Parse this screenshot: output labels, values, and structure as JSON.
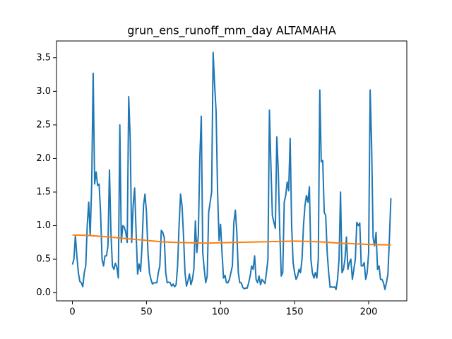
{
  "chart_data": {
    "type": "line",
    "title": "grun_ens_runoff_mm_day ALTAMAHA",
    "series": [
      {
        "color": "#1f77b4",
        "x": [
          0,
          1,
          2,
          3,
          4,
          5,
          6,
          7,
          8,
          9,
          10,
          11,
          12,
          13,
          14,
          15,
          16,
          17,
          18,
          19,
          20,
          21,
          22,
          23,
          24,
          25,
          26,
          27,
          28,
          29,
          30,
          31,
          32,
          33,
          34,
          35,
          36,
          37,
          38,
          39,
          40,
          41,
          42,
          43,
          44,
          45,
          46,
          47,
          48,
          49,
          50,
          51,
          52,
          53,
          54,
          55,
          56,
          57,
          58,
          59,
          60,
          61,
          62,
          63,
          64,
          65,
          66,
          67,
          68,
          69,
          70,
          71,
          72,
          73,
          74,
          75,
          76,
          77,
          78,
          79,
          80,
          81,
          82,
          83,
          84,
          85,
          86,
          87,
          88,
          89,
          90,
          91,
          92,
          93,
          94,
          95,
          96,
          97,
          98,
          99,
          100,
          101,
          102,
          103,
          104,
          105,
          106,
          107,
          108,
          109,
          110,
          111,
          112,
          113,
          114,
          115,
          116,
          117,
          118,
          119,
          120,
          121,
          122,
          123,
          124,
          125,
          126,
          127,
          128,
          129,
          130,
          131,
          132,
          133,
          134,
          135,
          136,
          137,
          138,
          139,
          140,
          141,
          142,
          143,
          144,
          145,
          146,
          147,
          148,
          149,
          150,
          151,
          152,
          153,
          154,
          155,
          156,
          157,
          158,
          159,
          160,
          161,
          162,
          163,
          164,
          165,
          166,
          167,
          168,
          169,
          170,
          171,
          172,
          173,
          174,
          175,
          176,
          177,
          178,
          179,
          180,
          181,
          182,
          183,
          184,
          185,
          186,
          187,
          188,
          189,
          190,
          191,
          192,
          193,
          194,
          195,
          196,
          197,
          198,
          199,
          200,
          201,
          202,
          203,
          204,
          205,
          206,
          207,
          208,
          209,
          210,
          211,
          212,
          213,
          214,
          215
        ],
        "values": [
          0.42,
          0.5,
          0.85,
          0.55,
          0.3,
          0.17,
          0.15,
          0.09,
          0.3,
          0.4,
          1.0,
          1.35,
          0.85,
          1.6,
          3.27,
          1.62,
          1.8,
          1.6,
          1.62,
          1.2,
          0.5,
          0.4,
          0.55,
          0.55,
          0.7,
          1.83,
          0.9,
          0.4,
          0.35,
          0.44,
          0.38,
          0.22,
          2.5,
          0.75,
          1.0,
          0.98,
          0.9,
          0.75,
          2.92,
          2.3,
          0.75,
          1.3,
          1.56,
          0.9,
          0.28,
          0.43,
          0.32,
          0.7,
          1.3,
          1.47,
          1.2,
          0.6,
          0.3,
          0.2,
          0.13,
          0.15,
          0.15,
          0.15,
          0.3,
          0.4,
          0.93,
          0.9,
          0.82,
          0.3,
          0.15,
          0.16,
          0.15,
          0.1,
          0.13,
          0.09,
          0.12,
          0.4,
          1.0,
          1.47,
          1.3,
          0.85,
          0.3,
          0.1,
          0.18,
          0.28,
          0.12,
          0.2,
          0.35,
          1.07,
          0.6,
          0.85,
          2.0,
          2.63,
          0.6,
          0.35,
          0.15,
          0.25,
          1.2,
          1.35,
          1.5,
          3.58,
          3.1,
          2.7,
          1.5,
          0.78,
          1.02,
          0.6,
          0.22,
          0.26,
          0.15,
          0.15,
          0.2,
          0.3,
          0.4,
          1.05,
          1.23,
          0.9,
          0.3,
          0.15,
          0.15,
          0.08,
          0.06,
          0.07,
          0.07,
          0.15,
          0.25,
          0.4,
          0.35,
          0.55,
          0.2,
          0.15,
          0.25,
          0.12,
          0.2,
          0.17,
          0.14,
          0.3,
          0.5,
          2.72,
          1.9,
          1.15,
          1.05,
          0.96,
          2.32,
          1.8,
          0.9,
          0.25,
          0.3,
          1.35,
          1.45,
          1.65,
          1.52,
          2.3,
          1.0,
          0.45,
          0.3,
          0.2,
          0.25,
          0.35,
          0.3,
          0.5,
          1.0,
          1.3,
          1.45,
          1.35,
          1.58,
          0.5,
          0.3,
          0.22,
          0.3,
          0.22,
          0.5,
          3.02,
          1.95,
          1.97,
          1.2,
          1.15,
          0.6,
          0.3,
          0.08,
          0.09,
          0.08,
          0.09,
          0.05,
          0.2,
          0.5,
          1.5,
          0.3,
          0.35,
          0.5,
          0.83,
          0.35,
          0.45,
          0.5,
          0.2,
          0.35,
          0.5,
          1.05,
          1.0,
          1.04,
          0.4,
          0.4,
          0.45,
          0.2,
          0.3,
          0.6,
          3.02,
          2.2,
          0.82,
          0.7,
          0.9,
          0.35,
          0.4,
          0.2,
          0.2,
          0.15,
          0.05,
          0.15,
          0.28,
          0.8,
          1.41
        ]
      },
      {
        "color": "#ff7f0e",
        "x": [
          0,
          10,
          20,
          30,
          40,
          50,
          60,
          70,
          80,
          90,
          100,
          110,
          120,
          130,
          140,
          150,
          160,
          170,
          180,
          190,
          200,
          210,
          215
        ],
        "values": [
          0.86,
          0.855,
          0.84,
          0.82,
          0.8,
          0.78,
          0.76,
          0.75,
          0.745,
          0.74,
          0.745,
          0.75,
          0.755,
          0.76,
          0.765,
          0.77,
          0.765,
          0.755,
          0.74,
          0.73,
          0.72,
          0.715,
          0.715
        ]
      }
    ],
    "xlim": [
      -10.75,
      225.75
    ],
    "xticks": [
      0,
      50,
      100,
      150,
      200
    ],
    "ylim": [
      -0.12,
      3.75
    ],
    "yticks": [
      {
        "value": 0,
        "label": "0.0"
      },
      0.5,
      {
        "value": 1,
        "label": "1.0"
      },
      1.5,
      {
        "value": 2,
        "label": "2.0"
      },
      2.5,
      {
        "value": 3,
        "label": "3.0"
      },
      3.5
    ]
  }
}
